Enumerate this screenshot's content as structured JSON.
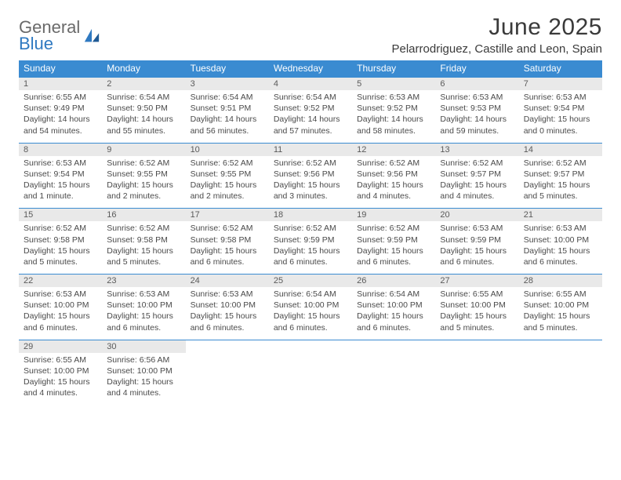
{
  "brand": {
    "word1": "General",
    "word2": "Blue"
  },
  "title": "June 2025",
  "location": "Pelarrodriguez, Castille and Leon, Spain",
  "colors": {
    "header_bar": "#3a8bd1",
    "daynum_bg": "#e9e9e9",
    "week_border": "#3a8bd1",
    "brand_blue": "#2f79c1",
    "text": "#3a3a3a"
  },
  "dow": [
    "Sunday",
    "Monday",
    "Tuesday",
    "Wednesday",
    "Thursday",
    "Friday",
    "Saturday"
  ],
  "weeks": [
    [
      {
        "n": "1",
        "sunrise": "Sunrise: 6:55 AM",
        "sunset": "Sunset: 9:49 PM",
        "day1": "Daylight: 14 hours",
        "day2": "and 54 minutes."
      },
      {
        "n": "2",
        "sunrise": "Sunrise: 6:54 AM",
        "sunset": "Sunset: 9:50 PM",
        "day1": "Daylight: 14 hours",
        "day2": "and 55 minutes."
      },
      {
        "n": "3",
        "sunrise": "Sunrise: 6:54 AM",
        "sunset": "Sunset: 9:51 PM",
        "day1": "Daylight: 14 hours",
        "day2": "and 56 minutes."
      },
      {
        "n": "4",
        "sunrise": "Sunrise: 6:54 AM",
        "sunset": "Sunset: 9:52 PM",
        "day1": "Daylight: 14 hours",
        "day2": "and 57 minutes."
      },
      {
        "n": "5",
        "sunrise": "Sunrise: 6:53 AM",
        "sunset": "Sunset: 9:52 PM",
        "day1": "Daylight: 14 hours",
        "day2": "and 58 minutes."
      },
      {
        "n": "6",
        "sunrise": "Sunrise: 6:53 AM",
        "sunset": "Sunset: 9:53 PM",
        "day1": "Daylight: 14 hours",
        "day2": "and 59 minutes."
      },
      {
        "n": "7",
        "sunrise": "Sunrise: 6:53 AM",
        "sunset": "Sunset: 9:54 PM",
        "day1": "Daylight: 15 hours",
        "day2": "and 0 minutes."
      }
    ],
    [
      {
        "n": "8",
        "sunrise": "Sunrise: 6:53 AM",
        "sunset": "Sunset: 9:54 PM",
        "day1": "Daylight: 15 hours",
        "day2": "and 1 minute."
      },
      {
        "n": "9",
        "sunrise": "Sunrise: 6:52 AM",
        "sunset": "Sunset: 9:55 PM",
        "day1": "Daylight: 15 hours",
        "day2": "and 2 minutes."
      },
      {
        "n": "10",
        "sunrise": "Sunrise: 6:52 AM",
        "sunset": "Sunset: 9:55 PM",
        "day1": "Daylight: 15 hours",
        "day2": "and 2 minutes."
      },
      {
        "n": "11",
        "sunrise": "Sunrise: 6:52 AM",
        "sunset": "Sunset: 9:56 PM",
        "day1": "Daylight: 15 hours",
        "day2": "and 3 minutes."
      },
      {
        "n": "12",
        "sunrise": "Sunrise: 6:52 AM",
        "sunset": "Sunset: 9:56 PM",
        "day1": "Daylight: 15 hours",
        "day2": "and 4 minutes."
      },
      {
        "n": "13",
        "sunrise": "Sunrise: 6:52 AM",
        "sunset": "Sunset: 9:57 PM",
        "day1": "Daylight: 15 hours",
        "day2": "and 4 minutes."
      },
      {
        "n": "14",
        "sunrise": "Sunrise: 6:52 AM",
        "sunset": "Sunset: 9:57 PM",
        "day1": "Daylight: 15 hours",
        "day2": "and 5 minutes."
      }
    ],
    [
      {
        "n": "15",
        "sunrise": "Sunrise: 6:52 AM",
        "sunset": "Sunset: 9:58 PM",
        "day1": "Daylight: 15 hours",
        "day2": "and 5 minutes."
      },
      {
        "n": "16",
        "sunrise": "Sunrise: 6:52 AM",
        "sunset": "Sunset: 9:58 PM",
        "day1": "Daylight: 15 hours",
        "day2": "and 5 minutes."
      },
      {
        "n": "17",
        "sunrise": "Sunrise: 6:52 AM",
        "sunset": "Sunset: 9:58 PM",
        "day1": "Daylight: 15 hours",
        "day2": "and 6 minutes."
      },
      {
        "n": "18",
        "sunrise": "Sunrise: 6:52 AM",
        "sunset": "Sunset: 9:59 PM",
        "day1": "Daylight: 15 hours",
        "day2": "and 6 minutes."
      },
      {
        "n": "19",
        "sunrise": "Sunrise: 6:52 AM",
        "sunset": "Sunset: 9:59 PM",
        "day1": "Daylight: 15 hours",
        "day2": "and 6 minutes."
      },
      {
        "n": "20",
        "sunrise": "Sunrise: 6:53 AM",
        "sunset": "Sunset: 9:59 PM",
        "day1": "Daylight: 15 hours",
        "day2": "and 6 minutes."
      },
      {
        "n": "21",
        "sunrise": "Sunrise: 6:53 AM",
        "sunset": "Sunset: 10:00 PM",
        "day1": "Daylight: 15 hours",
        "day2": "and 6 minutes."
      }
    ],
    [
      {
        "n": "22",
        "sunrise": "Sunrise: 6:53 AM",
        "sunset": "Sunset: 10:00 PM",
        "day1": "Daylight: 15 hours",
        "day2": "and 6 minutes."
      },
      {
        "n": "23",
        "sunrise": "Sunrise: 6:53 AM",
        "sunset": "Sunset: 10:00 PM",
        "day1": "Daylight: 15 hours",
        "day2": "and 6 minutes."
      },
      {
        "n": "24",
        "sunrise": "Sunrise: 6:53 AM",
        "sunset": "Sunset: 10:00 PM",
        "day1": "Daylight: 15 hours",
        "day2": "and 6 minutes."
      },
      {
        "n": "25",
        "sunrise": "Sunrise: 6:54 AM",
        "sunset": "Sunset: 10:00 PM",
        "day1": "Daylight: 15 hours",
        "day2": "and 6 minutes."
      },
      {
        "n": "26",
        "sunrise": "Sunrise: 6:54 AM",
        "sunset": "Sunset: 10:00 PM",
        "day1": "Daylight: 15 hours",
        "day2": "and 6 minutes."
      },
      {
        "n": "27",
        "sunrise": "Sunrise: 6:55 AM",
        "sunset": "Sunset: 10:00 PM",
        "day1": "Daylight: 15 hours",
        "day2": "and 5 minutes."
      },
      {
        "n": "28",
        "sunrise": "Sunrise: 6:55 AM",
        "sunset": "Sunset: 10:00 PM",
        "day1": "Daylight: 15 hours",
        "day2": "and 5 minutes."
      }
    ],
    [
      {
        "n": "29",
        "sunrise": "Sunrise: 6:55 AM",
        "sunset": "Sunset: 10:00 PM",
        "day1": "Daylight: 15 hours",
        "day2": "and 4 minutes."
      },
      {
        "n": "30",
        "sunrise": "Sunrise: 6:56 AM",
        "sunset": "Sunset: 10:00 PM",
        "day1": "Daylight: 15 hours",
        "day2": "and 4 minutes."
      },
      {
        "n": "",
        "sunrise": "",
        "sunset": "",
        "day1": "",
        "day2": ""
      },
      {
        "n": "",
        "sunrise": "",
        "sunset": "",
        "day1": "",
        "day2": ""
      },
      {
        "n": "",
        "sunrise": "",
        "sunset": "",
        "day1": "",
        "day2": ""
      },
      {
        "n": "",
        "sunrise": "",
        "sunset": "",
        "day1": "",
        "day2": ""
      },
      {
        "n": "",
        "sunrise": "",
        "sunset": "",
        "day1": "",
        "day2": ""
      }
    ]
  ]
}
